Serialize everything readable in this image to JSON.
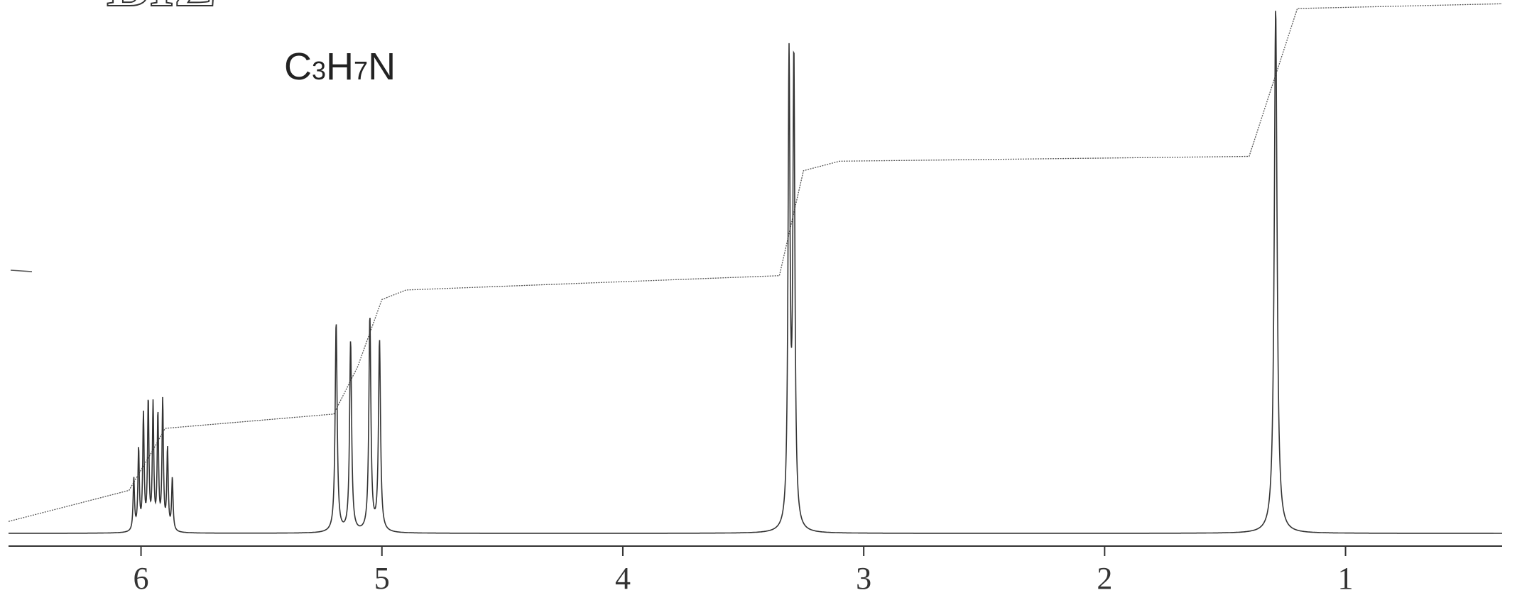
{
  "header": {
    "title_fragment": "BIZ",
    "formula": {
      "c": "C",
      "c_n": "3",
      "h": "H",
      "h_n": "7",
      "n": "N"
    }
  },
  "chart_data": {
    "type": "line",
    "title": "",
    "xlabel": "",
    "ylabel": "",
    "x_unit": "ppm",
    "x_reversed": true,
    "xlim": [
      6.55,
      0.35
    ],
    "ticks": [
      {
        "value": 6,
        "label": "6"
      },
      {
        "value": 5,
        "label": "5"
      },
      {
        "value": 4,
        "label": "4"
      },
      {
        "value": 3,
        "label": "3"
      },
      {
        "value": 2,
        "label": "2"
      },
      {
        "value": 1,
        "label": "1"
      }
    ],
    "grid": false,
    "legend": "none",
    "peaks": [
      {
        "shift": 6.03,
        "height": 0.11,
        "width": 0.0035
      },
      {
        "shift": 6.01,
        "height": 0.17,
        "width": 0.0035
      },
      {
        "shift": 5.99,
        "height": 0.24,
        "width": 0.0035
      },
      {
        "shift": 5.97,
        "height": 0.27,
        "width": 0.0035
      },
      {
        "shift": 5.95,
        "height": 0.26,
        "width": 0.0035
      },
      {
        "shift": 5.93,
        "height": 0.24,
        "width": 0.0035
      },
      {
        "shift": 5.91,
        "height": 0.27,
        "width": 0.0035
      },
      {
        "shift": 5.89,
        "height": 0.17,
        "width": 0.0035
      },
      {
        "shift": 5.87,
        "height": 0.11,
        "width": 0.0035
      },
      {
        "shift": 5.19,
        "height": 0.44,
        "width": 0.005
      },
      {
        "shift": 5.13,
        "height": 0.4,
        "width": 0.005
      },
      {
        "shift": 5.05,
        "height": 0.45,
        "width": 0.005
      },
      {
        "shift": 5.01,
        "height": 0.4,
        "width": 0.005
      },
      {
        "shift": 3.31,
        "height": 0.97,
        "width": 0.005
      },
      {
        "shift": 3.29,
        "height": 0.97,
        "width": 0.005
      },
      {
        "shift": 1.29,
        "height": 1.1,
        "width": 0.007
      }
    ],
    "integral": [
      [
        6.55,
        0.025
      ],
      [
        6.05,
        0.09
      ],
      [
        5.95,
        0.175
      ],
      [
        5.9,
        0.22
      ],
      [
        5.2,
        0.25
      ],
      [
        5.1,
        0.35
      ],
      [
        5.0,
        0.49
      ],
      [
        4.9,
        0.51
      ],
      [
        3.35,
        0.54
      ],
      [
        3.25,
        0.76
      ],
      [
        3.1,
        0.78
      ],
      [
        1.4,
        0.79
      ],
      [
        1.2,
        1.1
      ],
      [
        0.35,
        1.11
      ]
    ]
  }
}
